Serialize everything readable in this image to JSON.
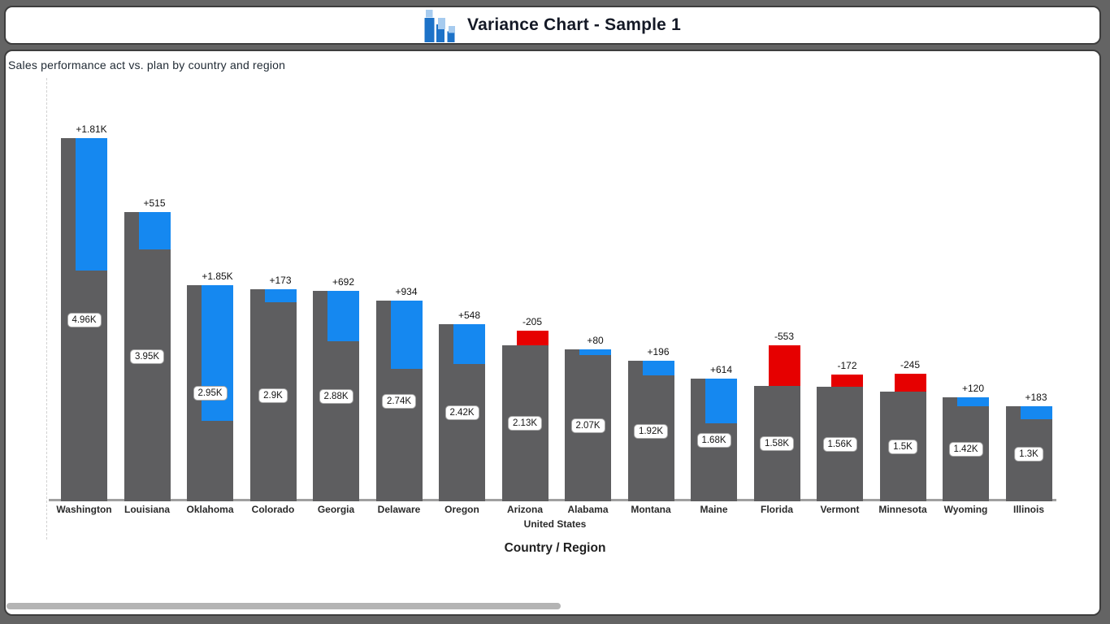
{
  "header": {
    "title": "Variance Chart - Sample 1",
    "icon": "variance-bar-chart-icon"
  },
  "chart_data": {
    "type": "bar",
    "variant": "variance-actual-vs-plan",
    "title": "Variance Chart - Sample 1",
    "subtitle": "Sales performance act vs. plan by country and region",
    "xlabel": "Country / Region",
    "group_label": "United States",
    "grid": false,
    "legend": false,
    "ylim": [
      0,
      4960
    ],
    "colors": {
      "actual_bar": "#5e5e60",
      "positive_variance": "#1588f0",
      "negative_variance": "#e60000",
      "icon_dark_blue": "#1c72c8",
      "icon_light_blue": "#a6cbef"
    },
    "categories": [
      "Washington",
      "Louisiana",
      "Oklahoma",
      "Colorado",
      "Georgia",
      "Delaware",
      "Oregon",
      "Arizona",
      "Alabama",
      "Montana",
      "Maine",
      "Florida",
      "Vermont",
      "Minnesota",
      "Wyoming",
      "Illinois"
    ],
    "series": [
      {
        "name": "actual",
        "values": [
          4960,
          3950,
          2950,
          2900,
          2880,
          2740,
          2420,
          2130,
          2070,
          1920,
          1680,
          1580,
          1560,
          1500,
          1420,
          1300
        ],
        "labels": [
          "4.96K",
          "3.95K",
          "2.95K",
          "2.9K",
          "2.88K",
          "2.74K",
          "2.42K",
          "2.13K",
          "2.07K",
          "1.92K",
          "1.68K",
          "1.58K",
          "1.56K",
          "1.5K",
          "1.42K",
          "1.3K"
        ]
      },
      {
        "name": "variance_act_vs_plan",
        "values": [
          1810,
          515,
          1850,
          173,
          692,
          934,
          548,
          -205,
          80,
          196,
          614,
          -553,
          -172,
          -245,
          120,
          183
        ],
        "labels": [
          "+1.81K",
          "+515",
          "+1.85K",
          "+173",
          "+692",
          "+934",
          "+548",
          "-205",
          "+80",
          "+196",
          "+614",
          "-553",
          "-172",
          "-245",
          "+120",
          "+183"
        ]
      }
    ]
  }
}
